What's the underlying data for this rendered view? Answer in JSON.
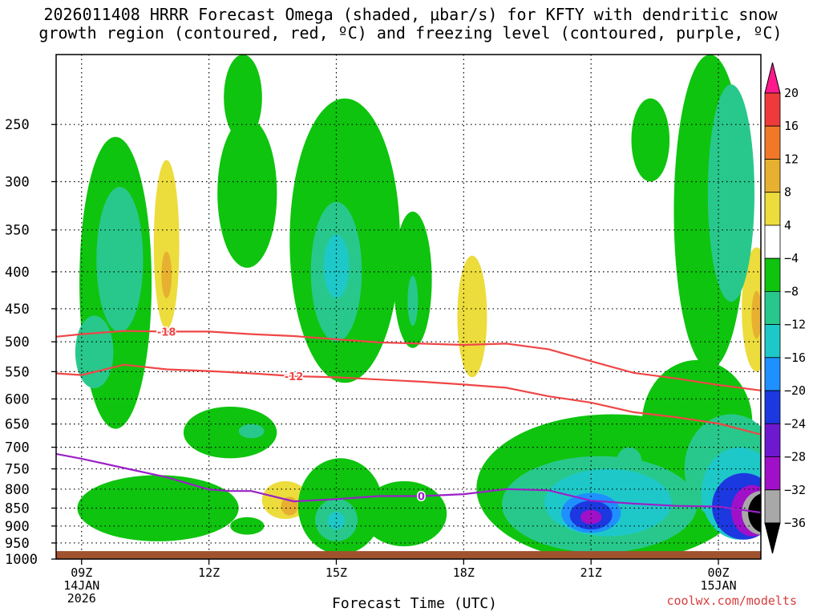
{
  "chart_data": {
    "type": "heatmap",
    "title_line1": "2026011408 HRRR Forecast Omega (shaded, μbar/s) for KFTY with dendritic snow",
    "title_line2": "growth region (contoured, red, ºC) and freezing level (contoured, purple, ºC)",
    "xlabel": "Forecast Time (UTC)",
    "credit": "coolwx.com/modelts",
    "x_range": [
      8.4,
      25.0
    ],
    "y_range": [
      200,
      1000
    ],
    "y_scale": "log-pressure",
    "y_ticks": [
      {
        "value": 250,
        "label": "250"
      },
      {
        "value": 300,
        "label": "300"
      },
      {
        "value": 350,
        "label": "350"
      },
      {
        "value": 400,
        "label": "400"
      },
      {
        "value": 450,
        "label": "450"
      },
      {
        "value": 500,
        "label": "500"
      },
      {
        "value": 550,
        "label": "550"
      },
      {
        "value": 600,
        "label": "600"
      },
      {
        "value": 650,
        "label": "650"
      },
      {
        "value": 700,
        "label": "700"
      },
      {
        "value": 750,
        "label": "750"
      },
      {
        "value": 800,
        "label": "800"
      },
      {
        "value": 850,
        "label": "850"
      },
      {
        "value": 900,
        "label": "900"
      },
      {
        "value": 950,
        "label": "950"
      },
      {
        "value": 1000,
        "label": "1000"
      }
    ],
    "x_ticks": [
      {
        "value": 9,
        "lines": [
          "09Z",
          "14JAN",
          "2026"
        ]
      },
      {
        "value": 12,
        "lines": [
          "12Z"
        ]
      },
      {
        "value": 15,
        "lines": [
          "15Z"
        ]
      },
      {
        "value": 18,
        "lines": [
          "18Z"
        ]
      },
      {
        "value": 21,
        "lines": [
          "21Z"
        ]
      },
      {
        "value": 24,
        "lines": [
          "00Z",
          "15JAN"
        ]
      }
    ],
    "grid": true,
    "ground_level": 975,
    "colorbar": {
      "labels": [
        "20",
        "16",
        "12",
        "8",
        "4",
        "−4",
        "−8",
        "−12",
        "−16",
        "−20",
        "−24",
        "−28",
        "−32",
        "−36"
      ],
      "colors": [
        "#ff1a8c",
        "#ee3a3a",
        "#f07828",
        "#e8b030",
        "#ecdc3c",
        "#ffffff",
        "#0ec40e",
        "#28c88c",
        "#1ec8c8",
        "#1e90ff",
        "#1c38e0",
        "#6e18d0",
        "#a010c8",
        "#a8a8a8",
        "#000000"
      ]
    },
    "series": [
      {
        "name": "-18",
        "color": "#f04646",
        "x": [
          8.4,
          9.0,
          10.0,
          11.0,
          12.0,
          13.0,
          14.0,
          15.0,
          16.0,
          17.0,
          18.0,
          19.0,
          20.0,
          21.0,
          22.0,
          23.0,
          24.0,
          25.0
        ],
        "y": [
          492,
          488,
          483,
          484,
          484,
          488,
          491,
          496,
          501,
          503,
          505,
          503,
          512,
          532,
          552,
          562,
          574,
          584
        ]
      },
      {
        "name": "-12",
        "color": "#f04646",
        "x": [
          8.4,
          9.0,
          10.0,
          11.0,
          12.0,
          13.0,
          14.0,
          15.0,
          16.0,
          17.0,
          18.0,
          19.0,
          20.0,
          21.0,
          22.0,
          23.0,
          24.0,
          25.0
        ],
        "y": [
          553,
          556,
          538,
          546,
          549,
          553,
          558,
          560,
          564,
          568,
          573,
          579,
          595,
          607,
          626,
          636,
          649,
          672
        ]
      },
      {
        "name": "0",
        "color": "#9a20c8",
        "x": [
          8.4,
          9.0,
          10.0,
          11.0,
          12.0,
          12.5,
          13.0,
          14.0,
          15.0,
          16.0,
          17.0,
          18.0,
          19.0,
          20.0,
          21.0,
          22.0,
          23.0,
          24.0,
          25.0
        ],
        "y": [
          715,
          726,
          748,
          770,
          801,
          805,
          805,
          832,
          826,
          818,
          818,
          813,
          800,
          803,
          830,
          838,
          844,
          846,
          862
        ]
      }
    ],
    "omega_cells": [
      {
        "x": 9.8,
        "p": 460,
        "rx": 0.85,
        "rp": 200,
        "v": -7
      },
      {
        "x": 9.9,
        "p": 395,
        "rx": 0.55,
        "rp": 90,
        "v": -10
      },
      {
        "x": 9.3,
        "p": 520,
        "rx": 0.45,
        "rp": 60,
        "v": -10
      },
      {
        "x": 11.0,
        "p": 380,
        "rx": 0.3,
        "rp": 100,
        "v": 5
      },
      {
        "x": 11.0,
        "p": 405,
        "rx": 0.12,
        "rp": 30,
        "v": 9
      },
      {
        "x": 12.8,
        "p": 228,
        "rx": 0.45,
        "rp": 35,
        "v": -6
      },
      {
        "x": 12.9,
        "p": 320,
        "rx": 0.7,
        "rp": 75,
        "v": -6
      },
      {
        "x": 15.2,
        "p": 400,
        "rx": 1.3,
        "rp": 170,
        "v": -7
      },
      {
        "x": 15.0,
        "p": 410,
        "rx": 0.6,
        "rp": 90,
        "v": -11
      },
      {
        "x": 15.0,
        "p": 395,
        "rx": 0.3,
        "rp": 40,
        "v": -15
      },
      {
        "x": 16.8,
        "p": 420,
        "rx": 0.45,
        "rp": 90,
        "v": -7
      },
      {
        "x": 16.8,
        "p": 440,
        "rx": 0.12,
        "rp": 35,
        "v": -10
      },
      {
        "x": 18.2,
        "p": 470,
        "rx": 0.35,
        "rp": 90,
        "v": 5
      },
      {
        "x": 22.4,
        "p": 265,
        "rx": 0.45,
        "rp": 35,
        "v": -6
      },
      {
        "x": 23.8,
        "p": 365,
        "rx": 0.85,
        "rp": 180,
        "v": -6
      },
      {
        "x": 24.3,
        "p": 330,
        "rx": 0.55,
        "rp": 110,
        "v": -10
      },
      {
        "x": 24.9,
        "p": 460,
        "rx": 0.35,
        "rp": 90,
        "v": 5
      },
      {
        "x": 24.9,
        "p": 460,
        "rx": 0.12,
        "rp": 35,
        "v": 9
      },
      {
        "x": 12.5,
        "p": 670,
        "rx": 1.1,
        "rp": 55,
        "v": -6
      },
      {
        "x": 13.0,
        "p": 665,
        "rx": 0.3,
        "rp": 15,
        "v": -10
      },
      {
        "x": 10.8,
        "p": 855,
        "rx": 1.9,
        "rp": 90,
        "v": -6
      },
      {
        "x": 12.9,
        "p": 900,
        "rx": 0.4,
        "rp": 25,
        "v": -6
      },
      {
        "x": 13.8,
        "p": 830,
        "rx": 0.55,
        "rp": 50,
        "v": 5
      },
      {
        "x": 13.9,
        "p": 845,
        "rx": 0.2,
        "rp": 25,
        "v": 9
      },
      {
        "x": 15.1,
        "p": 855,
        "rx": 1.0,
        "rp": 130,
        "v": -7
      },
      {
        "x": 15.0,
        "p": 885,
        "rx": 0.5,
        "rp": 60,
        "v": -10
      },
      {
        "x": 15.0,
        "p": 885,
        "rx": 0.2,
        "rp": 25,
        "v": -15
      },
      {
        "x": 16.6,
        "p": 870,
        "rx": 1.0,
        "rp": 90,
        "v": -6
      },
      {
        "x": 21.5,
        "p": 820,
        "rx": 3.2,
        "rp": 190,
        "v": -6
      },
      {
        "x": 23.5,
        "p": 660,
        "rx": 1.3,
        "rp": 130,
        "v": -7
      },
      {
        "x": 21.2,
        "p": 850,
        "rx": 2.3,
        "rp": 130,
        "v": -10
      },
      {
        "x": 21.4,
        "p": 840,
        "rx": 1.5,
        "rp": 90,
        "v": -15
      },
      {
        "x": 21.0,
        "p": 865,
        "rx": 0.7,
        "rp": 55,
        "v": -18
      },
      {
        "x": 21.0,
        "p": 870,
        "rx": 0.5,
        "rp": 40,
        "v": -24
      },
      {
        "x": 21.0,
        "p": 875,
        "rx": 0.25,
        "rp": 20,
        "v": -29
      },
      {
        "x": 21.9,
        "p": 735,
        "rx": 0.3,
        "rp": 35,
        "v": -11
      },
      {
        "x": 24.3,
        "p": 760,
        "rx": 1.1,
        "rp": 130,
        "v": -10
      },
      {
        "x": 24.5,
        "p": 820,
        "rx": 0.9,
        "rp": 120,
        "v": -15
      },
      {
        "x": 24.6,
        "p": 850,
        "rx": 0.75,
        "rp": 90,
        "v": -22
      },
      {
        "x": 24.8,
        "p": 860,
        "rx": 0.5,
        "rp": 70,
        "v": -29
      },
      {
        "x": 25.0,
        "p": 865,
        "rx": 0.45,
        "rp": 60,
        "v": -33
      },
      {
        "x": 25.1,
        "p": 865,
        "rx": 0.4,
        "rp": 55,
        "v": -37
      }
    ]
  }
}
